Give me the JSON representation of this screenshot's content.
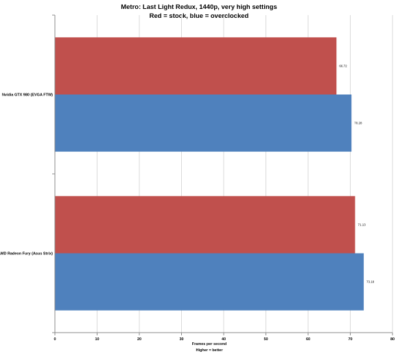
{
  "chart_data": {
    "type": "bar",
    "orientation": "horizontal",
    "title": "Metro: Last Light Redux, 1440p, very high settings",
    "subtitle": "Red = stock, blue = overclocked",
    "xlabel": "Frames per second",
    "xlabel_note": "Higher = better",
    "ylabel": "",
    "xlim": [
      0,
      80
    ],
    "xticks": [
      0,
      10,
      20,
      30,
      40,
      50,
      60,
      70,
      80
    ],
    "grid": true,
    "legend": "none",
    "categories": [
      "Nvidia GTX 980 (EVGA FTW)",
      "AMD Radeon Fury (Asus Strix)"
    ],
    "series": [
      {
        "color": "#c0504d",
        "values": [
          66.72,
          71.13
        ]
      },
      {
        "color": "#4f81bd",
        "values": [
          70.28,
          73.18
        ]
      }
    ],
    "data_labels": [
      [
        "66.72",
        "71.13"
      ],
      [
        "70.28",
        "73.18"
      ]
    ]
  }
}
